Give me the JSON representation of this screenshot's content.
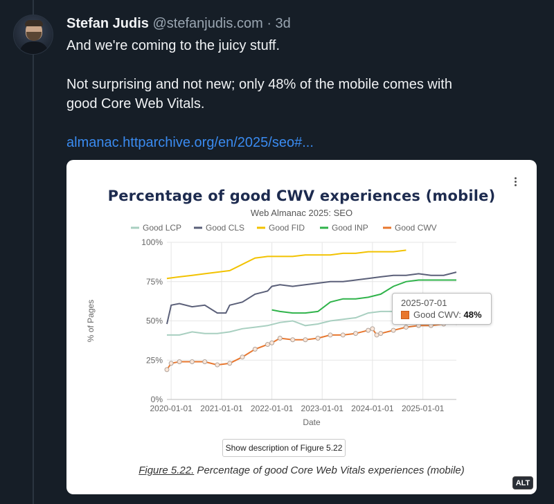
{
  "post": {
    "author": "Stefan Judis",
    "handle": "@stefanjudis.com",
    "separator": "·",
    "time": "3d",
    "line1": "And we're coming to the juicy stuff.",
    "line2": "Not surprising and not new; only 48% of the mobile comes with",
    "line3": "good Core Web Vitals.",
    "link": "almanac.httparchive.org/en/2025/seo#..."
  },
  "card": {
    "description_button": "Show description of Figure 5.22",
    "caption_figure": "Figure 5.22.",
    "caption_text": " Percentage of good Core Web Vitals experiences (mobile)",
    "alt_badge": "ALT"
  },
  "tooltip": {
    "date": "2025-07-01",
    "label": "Good CWV: ",
    "value": "48%"
  },
  "chart_data": {
    "type": "line",
    "title": "Percentage of good CWV experiences (mobile)",
    "subtitle": "Web Almanac 2025: SEO",
    "xlabel": "Date",
    "ylabel": "% of Pages",
    "yticks": [
      "0%",
      "25%",
      "50%",
      "75%",
      "100%"
    ],
    "ylim": [
      0,
      100
    ],
    "xticks": [
      "2020-01-01",
      "2021-01-01",
      "2022-01-01",
      "2023-01-01",
      "2024-01-01",
      "2025-01-01"
    ],
    "xlim": [
      "2019-12-01",
      "2025-09-01"
    ],
    "legend_position": "top",
    "grid": true,
    "series": [
      {
        "name": "Good LCP",
        "color": "#a8cfc0",
        "x": [
          "2019-12-01",
          "2020-03-01",
          "2020-06-01",
          "2020-09-01",
          "2020-12-01",
          "2021-03-01",
          "2021-06-01",
          "2021-09-01",
          "2021-12-01",
          "2022-03-01",
          "2022-06-01",
          "2022-09-01",
          "2022-12-01",
          "2023-03-01",
          "2023-06-01",
          "2023-09-01",
          "2023-12-01",
          "2024-03-01",
          "2024-06-01",
          "2024-09-01",
          "2024-12-01",
          "2025-03-01",
          "2025-06-01",
          "2025-09-01"
        ],
        "y": [
          41,
          41,
          43,
          42,
          42,
          43,
          45,
          46,
          47,
          49,
          50,
          47,
          48,
          50,
          51,
          52,
          55,
          56,
          56,
          58,
          58,
          59,
          59,
          59
        ]
      },
      {
        "name": "Good CLS",
        "color": "#5a5f78",
        "x": [
          "2019-12-01",
          "2020-01-01",
          "2020-03-01",
          "2020-06-01",
          "2020-09-01",
          "2020-12-01",
          "2021-02-01",
          "2021-03-01",
          "2021-06-01",
          "2021-09-01",
          "2021-12-01",
          "2022-01-01",
          "2022-03-01",
          "2022-06-01",
          "2022-09-01",
          "2022-12-01",
          "2023-03-01",
          "2023-06-01",
          "2023-09-01",
          "2023-12-01",
          "2024-03-01",
          "2024-06-01",
          "2024-09-01",
          "2024-12-01",
          "2025-03-01",
          "2025-06-01",
          "2025-09-01"
        ],
        "y": [
          48,
          60,
          61,
          59,
          60,
          55,
          55,
          60,
          62,
          67,
          69,
          72,
          73,
          72,
          73,
          74,
          75,
          75,
          76,
          77,
          78,
          79,
          79,
          80,
          79,
          79,
          81
        ]
      },
      {
        "name": "Good FID",
        "color": "#f2c200",
        "x": [
          "2019-12-01",
          "2020-03-01",
          "2020-06-01",
          "2020-09-01",
          "2020-12-01",
          "2021-03-01",
          "2021-06-01",
          "2021-09-01",
          "2021-12-01",
          "2022-03-01",
          "2022-06-01",
          "2022-09-01",
          "2022-12-01",
          "2023-03-01",
          "2023-06-01",
          "2023-09-01",
          "2023-12-01",
          "2024-03-01",
          "2024-06-01",
          "2024-09-01"
        ],
        "y": [
          77,
          78,
          79,
          80,
          81,
          82,
          86,
          90,
          91,
          91,
          91,
          92,
          92,
          92,
          93,
          93,
          94,
          94,
          94,
          95
        ]
      },
      {
        "name": "Good INP",
        "color": "#2fb34a",
        "x": [
          "2022-01-01",
          "2022-03-01",
          "2022-06-01",
          "2022-09-01",
          "2022-12-01",
          "2023-03-01",
          "2023-06-01",
          "2023-09-01",
          "2023-12-01",
          "2024-03-01",
          "2024-06-01",
          "2024-09-01",
          "2024-12-01",
          "2025-03-01",
          "2025-06-01",
          "2025-09-01"
        ],
        "y": [
          57,
          56,
          55,
          55,
          56,
          62,
          64,
          64,
          65,
          67,
          72,
          75,
          76,
          76,
          76,
          76
        ]
      },
      {
        "name": "Good CWV",
        "color": "#e8772e",
        "x": [
          "2019-12-01",
          "2020-01-01",
          "2020-03-01",
          "2020-06-01",
          "2020-09-01",
          "2020-12-01",
          "2021-03-01",
          "2021-06-01",
          "2021-09-01",
          "2021-12-01",
          "2022-01-01",
          "2022-03-01",
          "2022-06-01",
          "2022-09-01",
          "2022-12-01",
          "2023-03-01",
          "2023-06-01",
          "2023-09-01",
          "2023-12-01",
          "2024-01-01",
          "2024-02-01",
          "2024-03-01",
          "2024-06-01",
          "2024-09-01",
          "2024-12-01",
          "2025-03-01",
          "2025-06-01",
          "2025-09-01"
        ],
        "y": [
          19,
          23,
          24,
          24,
          24,
          22,
          23,
          27,
          32,
          35,
          36,
          39,
          38,
          38,
          39,
          41,
          41,
          42,
          44,
          45,
          41,
          42,
          44,
          46,
          47,
          47,
          48,
          49
        ]
      }
    ]
  }
}
